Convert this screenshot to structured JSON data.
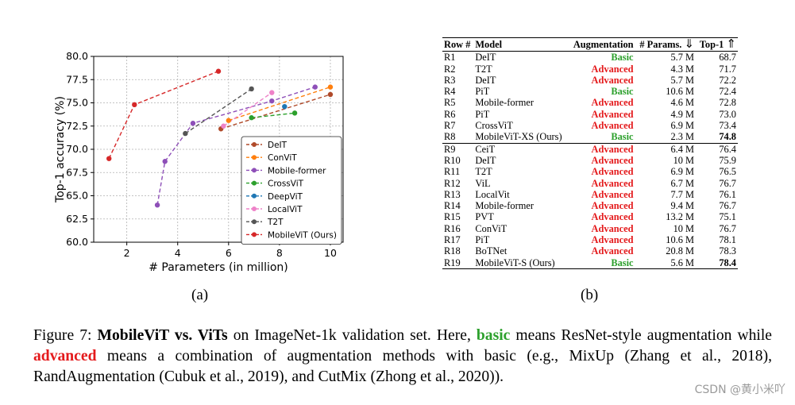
{
  "chart_data": {
    "type": "line",
    "xlabel": "# Parameters (in million)",
    "ylabel": "Top-1 accuracy (%)",
    "xlim": [
      0.7,
      10.5
    ],
    "ylim": [
      60.0,
      80.0
    ],
    "xticks": [
      2,
      4,
      6,
      8,
      10
    ],
    "yticks": [
      60.0,
      62.5,
      65.0,
      67.5,
      70.0,
      72.5,
      75.0,
      77.5,
      80.0
    ],
    "xtick_labels": [
      "2",
      "4",
      "6",
      "8",
      "10"
    ],
    "ytick_labels": [
      "60.0",
      "62.5",
      "65.0",
      "67.5",
      "70.0",
      "72.5",
      "75.0",
      "77.5",
      "80.0"
    ],
    "grid": true,
    "legend_position": "lower-right",
    "series": [
      {
        "name": "DeIT",
        "color": "#b04a2a",
        "points": [
          [
            5.7,
            72.2
          ],
          [
            10.0,
            75.9
          ]
        ]
      },
      {
        "name": "ConViT",
        "color": "#ff7f0e",
        "points": [
          [
            6.0,
            73.1
          ],
          [
            10.0,
            76.7
          ]
        ]
      },
      {
        "name": "Mobile-former",
        "color": "#8e4fb8",
        "points": [
          [
            3.2,
            64.0
          ],
          [
            3.5,
            68.7
          ],
          [
            4.6,
            72.8
          ],
          [
            7.7,
            75.2
          ],
          [
            9.4,
            76.7
          ]
        ]
      },
      {
        "name": "CrossViT",
        "color": "#2ca02c",
        "points": [
          [
            6.9,
            73.4
          ],
          [
            8.6,
            73.9
          ]
        ]
      },
      {
        "name": "DeepViT",
        "color": "#1f77b4",
        "points": [
          [
            8.2,
            74.6
          ]
        ]
      },
      {
        "name": "LocalViT",
        "color": "#ee82c8",
        "points": [
          [
            5.8,
            72.5
          ],
          [
            7.7,
            76.1
          ]
        ]
      },
      {
        "name": "T2T",
        "color": "#555555",
        "points": [
          [
            4.3,
            71.7
          ],
          [
            6.9,
            76.5
          ]
        ]
      },
      {
        "name": "MobileViT (Ours)",
        "color": "#d62728",
        "points": [
          [
            1.3,
            69.0
          ],
          [
            2.3,
            74.8
          ],
          [
            5.6,
            78.4
          ]
        ]
      }
    ]
  },
  "labels": {
    "a": "(a)",
    "b": "(b)"
  },
  "table": {
    "headers": {
      "row": "Row #",
      "model": "Model",
      "augmentation": "Augmentation",
      "params": "# Params.",
      "params_arrow": "⇓",
      "top1": "Top-1",
      "top1_arrow": "⇑"
    },
    "rows": [
      {
        "row": "R1",
        "model": "DeIT",
        "aug": "Basic",
        "params": "5.7 M",
        "top1": "68.7",
        "bold": false
      },
      {
        "row": "R2",
        "model": "T2T",
        "aug": "Advanced",
        "params": "4.3 M",
        "top1": "71.7",
        "bold": false
      },
      {
        "row": "R3",
        "model": "DeIT",
        "aug": "Advanced",
        "params": "5.7 M",
        "top1": "72.2",
        "bold": false
      },
      {
        "row": "R4",
        "model": "PiT",
        "aug": "Basic",
        "params": "10.6 M",
        "top1": "72.4",
        "bold": false
      },
      {
        "row": "R5",
        "model": "Mobile-former",
        "aug": "Advanced",
        "params": "4.6 M",
        "top1": "72.8",
        "bold": false
      },
      {
        "row": "R6",
        "model": "PiT",
        "aug": "Advanced",
        "params": "4.9 M",
        "top1": "73.0",
        "bold": false
      },
      {
        "row": "R7",
        "model": "CrossViT",
        "aug": "Advanced",
        "params": "6.9 M",
        "top1": "73.4",
        "bold": false
      },
      {
        "row": "R8",
        "model": "MobileViT-XS (Ours)",
        "aug": "Basic",
        "params": "2.3 M",
        "top1": "74.8",
        "bold": true
      },
      {
        "row": "R9",
        "model": "CeiT",
        "aug": "Advanced",
        "params": "6.4 M",
        "top1": "76.4",
        "bold": false
      },
      {
        "row": "R10",
        "model": "DeIT",
        "aug": "Advanced",
        "params": "10 M",
        "top1": "75.9",
        "bold": false
      },
      {
        "row": "R11",
        "model": "T2T",
        "aug": "Advanced",
        "params": "6.9 M",
        "top1": "76.5",
        "bold": false
      },
      {
        "row": "R12",
        "model": "ViL",
        "aug": "Advanced",
        "params": "6.7 M",
        "top1": "76.7",
        "bold": false
      },
      {
        "row": "R13",
        "model": "LocalVit",
        "aug": "Advanced",
        "params": "7.7 M",
        "top1": "76.1",
        "bold": false
      },
      {
        "row": "R14",
        "model": "Mobile-former",
        "aug": "Advanced",
        "params": "9.4 M",
        "top1": "76.7",
        "bold": false
      },
      {
        "row": "R15",
        "model": "PVT",
        "aug": "Advanced",
        "params": "13.2 M",
        "top1": "75.1",
        "bold": false
      },
      {
        "row": "R16",
        "model": "ConViT",
        "aug": "Advanced",
        "params": "10 M",
        "top1": "76.7",
        "bold": false
      },
      {
        "row": "R17",
        "model": "PiT",
        "aug": "Advanced",
        "params": "10.6 M",
        "top1": "78.1",
        "bold": false
      },
      {
        "row": "R18",
        "model": "BoTNet",
        "aug": "Advanced",
        "params": "20.8 M",
        "top1": "78.3",
        "bold": false
      },
      {
        "row": "R19",
        "model": "MobileViT-S (Ours)",
        "aug": "Basic",
        "params": "5.6 M",
        "top1": "78.4",
        "bold": true
      }
    ],
    "colors": {
      "Basic": "#2ca02c",
      "Advanced": "#e41a1c"
    }
  },
  "caption": {
    "prefix": "Figure 7: ",
    "title": "MobileViT vs. ViTs",
    "part1": " on ImageNet-1k validation set. Here, ",
    "basic": "basic",
    "part2": " means ResNet-style augmentation while ",
    "advanced": "advanced",
    "part3": " means a combination of augmentation methods with basic (e.g., MixUp (Zhang et al., 2018), RandAugmentation (Cubuk et al., 2019), and CutMix (Zhong et al., 2020))."
  },
  "watermark": "CSDN @黄小米吖"
}
